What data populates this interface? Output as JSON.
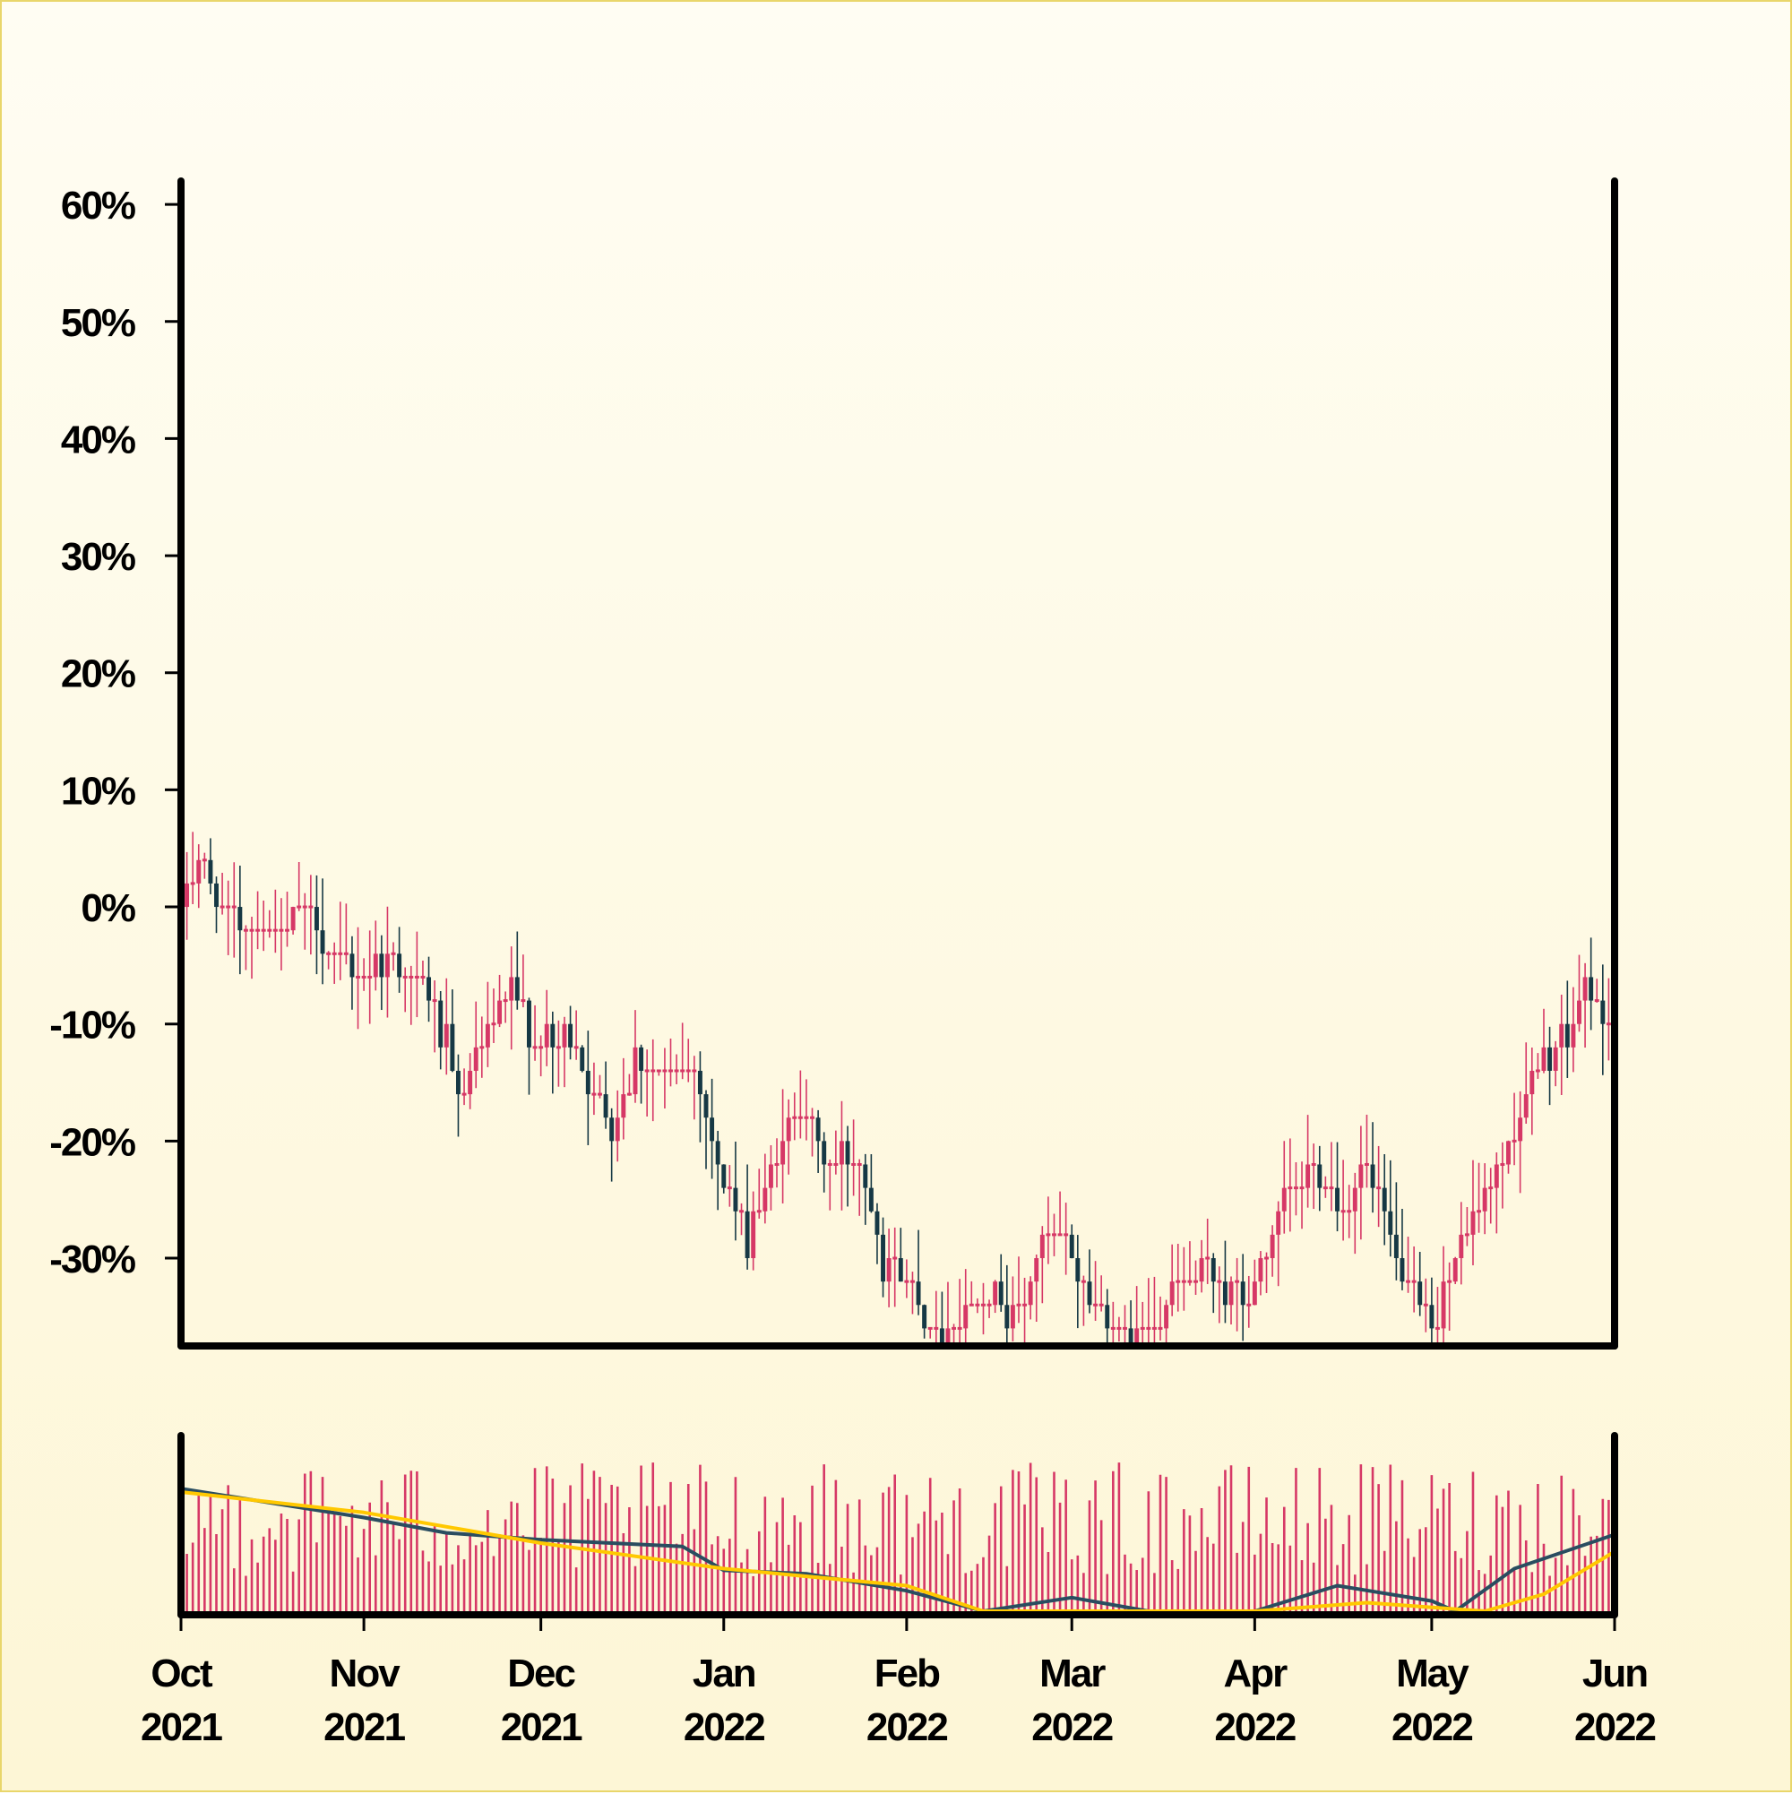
{
  "chart_data": {
    "type": "candlestick",
    "title": "",
    "xlabel": "",
    "ylabel": "",
    "y_unit": "%",
    "x_range": [
      "2021-10-01",
      "2022-06-01"
    ],
    "ylim": [
      -37.5,
      62
    ],
    "y_ticks": [
      "60%",
      "50%",
      "40%",
      "30%",
      "20%",
      "10%",
      "0%",
      "-10%",
      "-20%",
      "-30%"
    ],
    "y_tick_values": [
      60,
      50,
      40,
      30,
      20,
      10,
      0,
      -10,
      -20,
      -30
    ],
    "x_ticks": [
      {
        "date": "2021-10-01",
        "month": "Oct",
        "year": "2021"
      },
      {
        "date": "2021-11-01",
        "month": "Nov",
        "year": "2021"
      },
      {
        "date": "2021-12-01",
        "month": "Dec",
        "year": "2021"
      },
      {
        "date": "2022-01-01",
        "month": "Jan",
        "year": "2022"
      },
      {
        "date": "2022-02-01",
        "month": "Feb",
        "year": "2022"
      },
      {
        "date": "2022-03-01",
        "month": "Mar",
        "year": "2022"
      },
      {
        "date": "2022-04-01",
        "month": "Apr",
        "year": "2022"
      },
      {
        "date": "2022-05-01",
        "month": "May",
        "year": "2022"
      },
      {
        "date": "2022-06-01",
        "month": "Jun",
        "year": "2022"
      }
    ],
    "close_path": [
      [
        "2021-10-01",
        0
      ],
      [
        "2021-10-04",
        5
      ],
      [
        "2021-10-06",
        2
      ],
      [
        "2021-10-08",
        0
      ],
      [
        "2021-10-12",
        -2
      ],
      [
        "2021-10-18",
        -2
      ],
      [
        "2021-10-22",
        0
      ],
      [
        "2021-10-26",
        -4
      ],
      [
        "2021-11-01",
        -6
      ],
      [
        "2021-11-05",
        -4
      ],
      [
        "2021-11-10",
        -6
      ],
      [
        "2021-11-15",
        -12
      ],
      [
        "2021-11-17",
        -16
      ],
      [
        "2021-11-22",
        -11
      ],
      [
        "2021-11-26",
        -7
      ],
      [
        "2021-12-01",
        -12
      ],
      [
        "2021-12-06",
        -11
      ],
      [
        "2021-12-10",
        -16
      ],
      [
        "2021-12-13",
        -19
      ],
      [
        "2021-12-17",
        -13
      ],
      [
        "2021-12-22",
        -15
      ],
      [
        "2021-12-27",
        -13
      ],
      [
        "2021-12-31",
        -22
      ],
      [
        "2022-01-05",
        -28
      ],
      [
        "2022-01-10",
        -21
      ],
      [
        "2022-01-14",
        -17
      ],
      [
        "2022-01-19",
        -22
      ],
      [
        "2022-01-24",
        -21
      ],
      [
        "2022-01-28",
        -30
      ],
      [
        "2022-02-02",
        -33
      ],
      [
        "2022-02-06",
        -37
      ],
      [
        "2022-02-10",
        -35
      ],
      [
        "2022-02-14",
        -33
      ],
      [
        "2022-02-20",
        -35
      ],
      [
        "2022-02-25",
        -28
      ],
      [
        "2022-03-01",
        -30
      ],
      [
        "2022-03-04",
        -34
      ],
      [
        "2022-03-10",
        -37
      ],
      [
        "2022-03-14",
        -36
      ],
      [
        "2022-03-18",
        -33
      ],
      [
        "2022-03-24",
        -31
      ],
      [
        "2022-03-30",
        -34
      ],
      [
        "2022-04-05",
        -27
      ],
      [
        "2022-04-10",
        -22
      ],
      [
        "2022-04-16",
        -25
      ],
      [
        "2022-04-20",
        -22
      ],
      [
        "2022-04-25",
        -30
      ],
      [
        "2022-04-28",
        -34
      ],
      [
        "2022-05-01",
        -36
      ],
      [
        "2022-05-05",
        -30
      ],
      [
        "2022-05-10",
        -25
      ],
      [
        "2022-05-14",
        -20
      ],
      [
        "2022-05-19",
        -14
      ],
      [
        "2022-05-24",
        -11
      ],
      [
        "2022-05-27",
        -7
      ],
      [
        "2022-05-30",
        -9
      ],
      [
        "2022-06-01",
        -12
      ]
    ],
    "volume_panel": {
      "y_ticks": [],
      "moving_averages": [
        {
          "color": "#2a4d60",
          "values": [
            [
              "2021-10-01",
              0.72
            ],
            [
              "2021-11-01",
              0.55
            ],
            [
              "2021-11-15",
              0.46
            ],
            [
              "2021-12-01",
              0.42
            ],
            [
              "2021-12-25",
              0.38
            ],
            [
              "2022-01-01",
              0.24
            ],
            [
              "2022-01-15",
              0.22
            ],
            [
              "2022-02-01",
              0.12
            ],
            [
              "2022-02-14",
              0.0
            ],
            [
              "2022-03-01",
              0.08
            ],
            [
              "2022-03-14",
              0.0
            ],
            [
              "2022-04-01",
              0.0
            ],
            [
              "2022-04-15",
              0.15
            ],
            [
              "2022-05-01",
              0.06
            ],
            [
              "2022-05-05",
              0.0
            ],
            [
              "2022-05-15",
              0.25
            ],
            [
              "2022-06-01",
              0.45
            ]
          ]
        },
        {
          "color": "#ffc800",
          "values": [
            [
              "2021-10-01",
              0.7
            ],
            [
              "2021-11-01",
              0.58
            ],
            [
              "2021-12-01",
              0.4
            ],
            [
              "2022-01-01",
              0.25
            ],
            [
              "2022-02-01",
              0.15
            ],
            [
              "2022-02-14",
              0.0
            ],
            [
              "2022-04-01",
              0.0
            ],
            [
              "2022-04-20",
              0.05
            ],
            [
              "2022-05-10",
              0.0
            ],
            [
              "2022-05-20",
              0.1
            ],
            [
              "2022-06-01",
              0.35
            ]
          ]
        }
      ]
    },
    "colors": {
      "up": "#d63866",
      "down": "#163844",
      "volume": "#d63866",
      "axis": "#000000"
    },
    "grid": false,
    "legend": "none"
  }
}
